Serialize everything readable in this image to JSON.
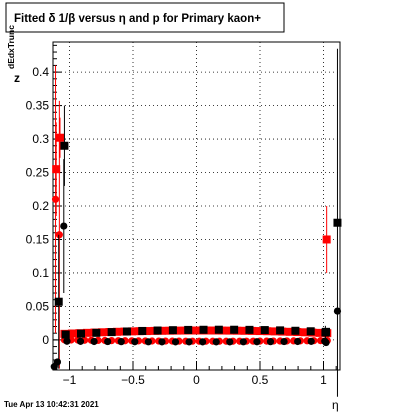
{
  "chart_data": {
    "type": "scatter",
    "title": "Fitted δ 1/β versus η and p for Primary kaon+",
    "xlabel": "η",
    "ylabel": "z",
    "ylabel_sub": "dEdxTrunc",
    "timestamp": "Tue Apr 13 10:42:31 2021",
    "xlim": [
      -1.13,
      1.13
    ],
    "ylim": [
      -0.045,
      0.445
    ],
    "x_ticks": [
      -1,
      -0.5,
      0,
      0.5,
      1
    ],
    "x_tick_labels": [
      "−1",
      "−0.5",
      "0",
      "0.5",
      "1"
    ],
    "y_ticks": [
      0,
      0.05,
      0.1,
      0.15,
      0.2,
      0.25,
      0.3,
      0.35,
      0.4
    ],
    "y_tick_labels": [
      "0",
      "0.05",
      "0.1",
      "0.15",
      "0.2",
      "0.25",
      "0.3",
      "0.35",
      "0.4"
    ],
    "grid": true,
    "colors": {
      "red": "#ff0000",
      "black": "#000000"
    },
    "series": [
      {
        "marker": "square",
        "color": "#ff0000",
        "points": [
          {
            "x": -1.105,
            "y": 0.255,
            "err": 0.07
          },
          {
            "x": -1.075,
            "y": 0.302,
            "err": 0.03
          },
          {
            "x": 1.025,
            "y": 0.15,
            "err": 0.05
          }
        ],
        "band": {
          "x_from": -1.04,
          "x_to": 1.03,
          "y_left": 0.009,
          "y_mid": 0.014,
          "y_right": 0.01,
          "count": 36
        }
      },
      {
        "marker": "circle",
        "color": "#ff0000",
        "points": [
          {
            "x": -1.11,
            "y": 0.21,
            "err": 0.2
          },
          {
            "x": -1.08,
            "y": 0.157,
            "err": 0.2
          }
        ],
        "band": {
          "x_from": -1.04,
          "x_to": 1.03,
          "y_left": 0.0,
          "y_mid": -0.002,
          "y_right": -0.001,
          "count": 40
        }
      },
      {
        "marker": "square",
        "color": "#000000",
        "points": [
          {
            "x": -1.085,
            "y": 0.057,
            "err": 0.1
          },
          {
            "x": -1.04,
            "y": 0.29,
            "err": 0.06
          },
          {
            "x": 1.015,
            "y": 0.011,
            "err": 0.01
          },
          {
            "x": 1.11,
            "y": 0.175,
            "err": 0.26
          }
        ],
        "band": {
          "x_from": -1.03,
          "x_to": 1.02,
          "y_left": 0.008,
          "y_mid": 0.015,
          "y_right": 0.012,
          "count": 18
        }
      },
      {
        "marker": "circle",
        "color": "#000000",
        "points": [
          {
            "x": -1.12,
            "y": -0.04,
            "err": 0.0
          },
          {
            "x": -1.095,
            "y": -0.033,
            "err": 0.0
          },
          {
            "x": -1.045,
            "y": 0.17,
            "err": 0.1
          },
          {
            "x": 1.02,
            "y": -0.004,
            "err": 0.0
          },
          {
            "x": 1.11,
            "y": 0.043,
            "err": 0.0
          }
        ],
        "band": {
          "x_from": -1.02,
          "x_to": 1.01,
          "y_left": -0.002,
          "y_mid": -0.003,
          "y_right": -0.002,
          "count": 20
        }
      }
    ]
  }
}
